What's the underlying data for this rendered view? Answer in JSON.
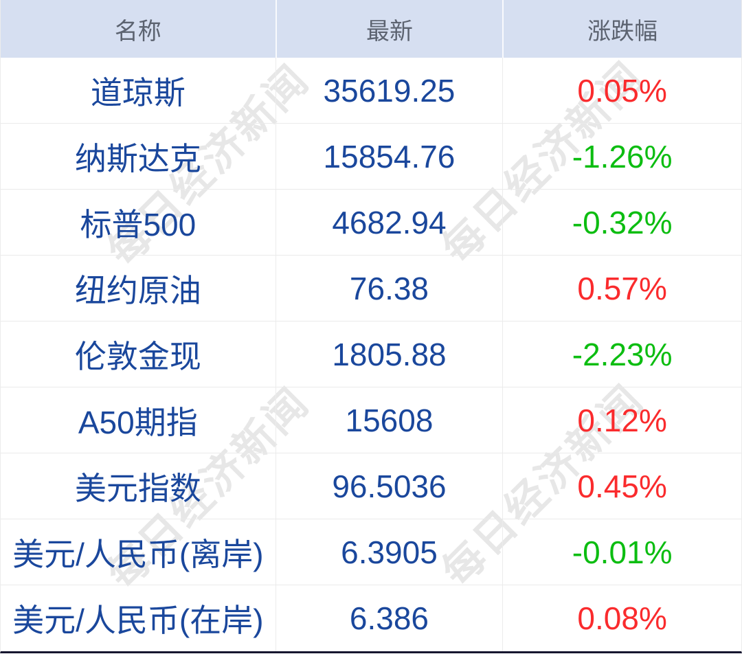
{
  "table": {
    "columns": [
      {
        "key": "name",
        "label": "名称"
      },
      {
        "key": "latest",
        "label": "最新"
      },
      {
        "key": "change",
        "label": "涨跌幅"
      }
    ],
    "rows": [
      {
        "name": "道琼斯",
        "latest": "35619.25",
        "change": "0.05%",
        "direction": "up"
      },
      {
        "name": "纳斯达克",
        "latest": "15854.76",
        "change": "-1.26%",
        "direction": "down"
      },
      {
        "name": "标普500",
        "latest": "4682.94",
        "change": "-0.32%",
        "direction": "down"
      },
      {
        "name": "纽约原油",
        "latest": "76.38",
        "change": "0.57%",
        "direction": "up"
      },
      {
        "name": "伦敦金现",
        "latest": "1805.88",
        "change": "-2.23%",
        "direction": "down"
      },
      {
        "name": "A50期指",
        "latest": "15608",
        "change": "0.12%",
        "direction": "up"
      },
      {
        "name": "美元指数",
        "latest": "96.5036",
        "change": "0.45%",
        "direction": "up"
      },
      {
        "name": "美元/人民币(离岸)",
        "latest": "6.3905",
        "change": "-0.01%",
        "direction": "down"
      },
      {
        "name": "美元/人民币(在岸)",
        "latest": "6.386",
        "change": "0.08%",
        "direction": "up"
      }
    ]
  },
  "watermark": {
    "text": "每日经济新闻"
  },
  "colors": {
    "up": "#fa2b2d",
    "down": "#0cbd11",
    "value_text": "#1a479c",
    "header_bg": "#d6dff1",
    "header_text": "#5c6370",
    "frame_bottom": "#15152e"
  }
}
